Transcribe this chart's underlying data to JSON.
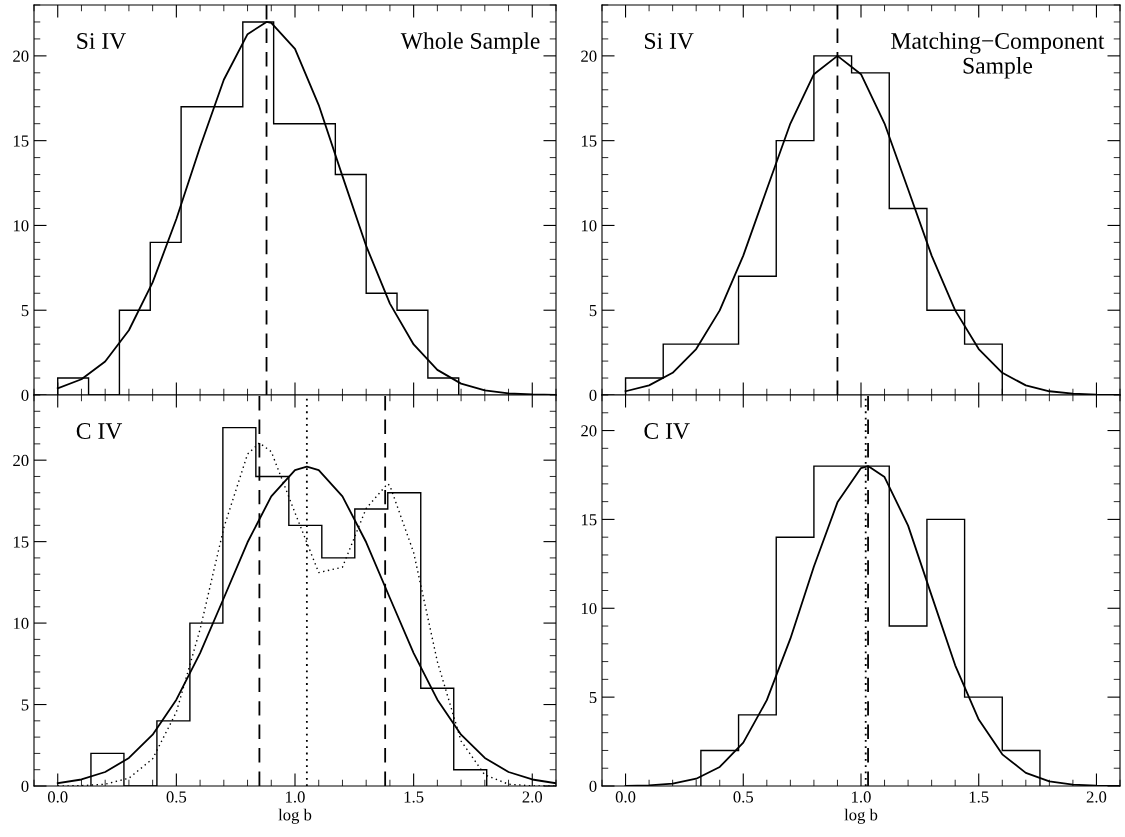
{
  "chart_data": [
    {
      "type": "histogram",
      "bins": [
        0,
        0.13,
        0.26,
        0.39,
        0.52,
        0.65,
        0.78,
        0.91,
        1.04,
        1.17,
        1.3,
        1.43,
        1.56,
        1.69
      ],
      "values": [
        1,
        0,
        5,
        9,
        17,
        17,
        22,
        16,
        16,
        13,
        6,
        5,
        1
      ],
      "color": "#000000",
      "series": [
        {
          "type": "line",
          "color": "#000000",
          "line_style": "solid",
          "x": [
            0,
            0.1,
            0.2,
            0.3,
            0.4,
            0.5,
            0.6,
            0.7,
            0.8,
            0.88,
            0.9,
            1.0,
            1.1,
            1.2,
            1.3,
            1.4,
            1.5,
            1.6,
            1.7,
            1.8,
            1.9,
            2.0,
            2.1
          ],
          "values": [
            0.39,
            0.93,
            1.98,
            3.82,
            6.64,
            10.38,
            14.63,
            18.59,
            21.28,
            22,
            21.95,
            20.41,
            17.1,
            12.91,
            8.79,
            5.39,
            2.98,
            1.48,
            0.67,
            0.27,
            0.1,
            0.03,
            0.01
          ]
        }
      ],
      "ref_lines": [
        {
          "axis": "x",
          "value": 0.88,
          "line_style": "dashed",
          "color": "#000000"
        }
      ],
      "annotations": [
        "Si IV",
        "Whole Sample"
      ],
      "xlim": [
        -0.1,
        2.1
      ],
      "ylim": [
        0,
        23
      ],
      "xticks": [
        {
          "value": 0,
          "label": null
        },
        {
          "value": 0.5,
          "label": null
        },
        {
          "value": 1,
          "label": null
        },
        {
          "value": 1.5,
          "label": null
        },
        {
          "value": 2,
          "label": null
        }
      ],
      "yticks": [
        0,
        5,
        10,
        15,
        20
      ],
      "tick_labels": "y",
      "grid": false,
      "legend": false
    },
    {
      "type": "histogram",
      "bins": [
        0,
        0.16,
        0.32,
        0.48,
        0.64,
        0.8,
        0.96,
        1.12,
        1.28,
        1.44,
        1.6
      ],
      "values": [
        1,
        3,
        3,
        7,
        15,
        20,
        19,
        11,
        5,
        3
      ],
      "color": "#000000",
      "series": [
        {
          "type": "line",
          "color": "#000000",
          "line_style": "solid",
          "x": [
            0,
            0.1,
            0.2,
            0.3,
            0.4,
            0.5,
            0.6,
            0.7,
            0.8,
            0.9,
            1.0,
            1.1,
            1.2,
            1.3,
            1.4,
            1.5,
            1.6,
            1.7,
            1.8,
            1.9,
            2.0,
            2.1
          ],
          "values": [
            0.22,
            0.57,
            1.31,
            2.71,
            4.99,
            8.22,
            12.13,
            16.01,
            18.92,
            20,
            18.92,
            16.01,
            12.13,
            8.22,
            4.99,
            2.71,
            1.31,
            0.57,
            0.22,
            0.08,
            0.02,
            0.01
          ]
        }
      ],
      "ref_lines": [
        {
          "axis": "x",
          "value": 0.9,
          "line_style": "dashed",
          "color": "#000000"
        }
      ],
      "annotations": [
        "Si IV",
        "Matching−Component\nSample"
      ],
      "xlim": [
        -0.1,
        2.1
      ],
      "ylim": [
        0,
        23
      ],
      "xticks": [
        {
          "value": 0,
          "label": null
        },
        {
          "value": 0.5,
          "label": null
        },
        {
          "value": 1,
          "label": null
        },
        {
          "value": 1.5,
          "label": null
        },
        {
          "value": 2,
          "label": null
        }
      ],
      "yticks": [
        0,
        5,
        10,
        15,
        20
      ],
      "tick_labels": "y",
      "grid": false,
      "legend": false
    },
    {
      "type": "histogram",
      "bins": [
        0.14,
        0.279,
        0.418,
        0.557,
        0.696,
        0.835,
        0.974,
        1.113,
        1.252,
        1.391,
        1.53,
        1.669,
        1.808
      ],
      "values": [
        2,
        0,
        4,
        10,
        22,
        19,
        16,
        14,
        17,
        18,
        6,
        1
      ],
      "color": "#000000",
      "series": [
        {
          "type": "line",
          "color": "#000000",
          "line_style": "solid",
          "x": [
            0,
            0.1,
            0.2,
            0.3,
            0.4,
            0.5,
            0.6,
            0.7,
            0.8,
            0.9,
            1.0,
            1.05,
            1.1,
            1.2,
            1.3,
            1.4,
            1.5,
            1.6,
            1.7,
            1.8,
            1.9,
            2.0,
            2.1
          ],
          "values": [
            0.17,
            0.4,
            0.86,
            1.72,
            3.15,
            5.3,
            8.16,
            11.54,
            14.96,
            17.78,
            19.39,
            19.6,
            19.39,
            17.78,
            14.96,
            11.54,
            8.16,
            5.3,
            3.15,
            1.72,
            0.86,
            0.4,
            0.17
          ]
        },
        {
          "type": "line",
          "color": "#000000",
          "line_style": "dotted",
          "x": [
            0,
            0.1,
            0.2,
            0.3,
            0.4,
            0.5,
            0.6,
            0.7,
            0.8,
            0.85,
            0.9,
            1.0,
            1.1,
            1.2,
            1.3,
            1.39,
            1.4,
            1.5,
            1.6,
            1.7,
            1.8,
            1.9,
            2.0,
            2.1
          ],
          "values": [
            0,
            0.02,
            0.11,
            0.48,
            1.67,
            4.54,
            9.62,
            15.85,
            20.37,
            21.06,
            20.52,
            16.77,
            13.1,
            13.43,
            17.04,
            18.55,
            18.44,
            14.33,
            7.63,
            2.76,
            0.68,
            0.11,
            0.01,
            0
          ]
        }
      ],
      "ref_lines": [
        {
          "axis": "x",
          "value": 0.85,
          "line_style": "dashed",
          "color": "#000000"
        },
        {
          "axis": "x",
          "value": 1.05,
          "line_style": "dotted",
          "color": "#000000"
        },
        {
          "axis": "x",
          "value": 1.38,
          "line_style": "dashed",
          "color": "#000000"
        }
      ],
      "annotations": [
        "C IV"
      ],
      "xlabel": "log b",
      "xlim": [
        -0.1,
        2.1
      ],
      "ylim": [
        0,
        24
      ],
      "xticks": [
        {
          "value": 0,
          "label": "0.0"
        },
        {
          "value": 0.5,
          "label": "0.5"
        },
        {
          "value": 1,
          "label": "1.0"
        },
        {
          "value": 1.5,
          "label": "1.5"
        },
        {
          "value": 2,
          "label": "2.0"
        }
      ],
      "yticks": [
        0,
        5,
        10,
        15,
        20
      ],
      "grid": false,
      "legend": false
    },
    {
      "type": "histogram",
      "bins": [
        0.32,
        0.48,
        0.64,
        0.8,
        0.96,
        1.12,
        1.28,
        1.44,
        1.6,
        1.76
      ],
      "values": [
        2,
        4,
        14,
        18,
        18,
        9,
        15,
        5,
        2
      ],
      "color": "#000000",
      "series": [
        {
          "type": "line",
          "color": "#000000",
          "line_style": "solid",
          "x": [
            0,
            0.1,
            0.2,
            0.3,
            0.4,
            0.5,
            0.6,
            0.7,
            0.8,
            0.9,
            1.0,
            1.03,
            1.1,
            1.2,
            1.3,
            1.4,
            1.5,
            1.6,
            1.7,
            1.8,
            1.9,
            2.0,
            2.1
          ],
          "values": [
            0.01,
            0.04,
            0.13,
            0.41,
            1.07,
            2.44,
            4.83,
            8.29,
            12.35,
            15.96,
            17.89,
            18,
            17.38,
            14.65,
            10.71,
            6.79,
            3.74,
            1.78,
            0.74,
            0.26,
            0.08,
            0.02,
            0
          ]
        }
      ],
      "ref_lines": [
        {
          "axis": "x",
          "value": 1.02,
          "line_style": "dotted",
          "color": "#000000"
        },
        {
          "axis": "x",
          "value": 1.03,
          "line_style": "dashed",
          "color": "#000000"
        }
      ],
      "annotations": [
        "C IV"
      ],
      "xlabel": "log b",
      "xlim": [
        -0.1,
        2.1
      ],
      "ylim": [
        0,
        22
      ],
      "xticks": [
        {
          "value": 0,
          "label": "0.0"
        },
        {
          "value": 0.5,
          "label": "0.5"
        },
        {
          "value": 1,
          "label": "1.0"
        },
        {
          "value": 1.5,
          "label": "1.5"
        },
        {
          "value": 2,
          "label": "2.0"
        }
      ],
      "yticks": [
        0,
        5,
        10,
        15,
        20
      ],
      "grid": false,
      "legend": false
    }
  ]
}
